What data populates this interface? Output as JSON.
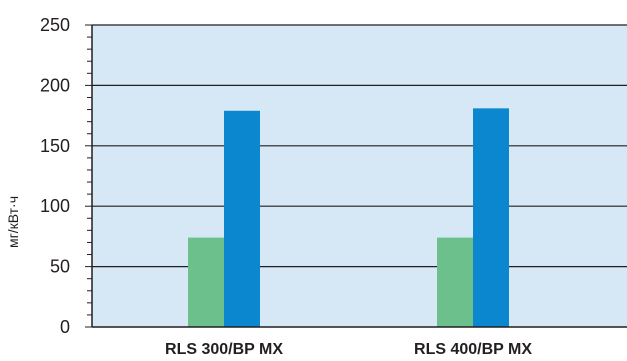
{
  "chart_data": {
    "type": "bar",
    "title": "",
    "xlabel": "",
    "ylabel": "мг/кВт·ч",
    "ylim": [
      0,
      250
    ],
    "yticks": [
      0,
      50,
      100,
      150,
      200,
      250
    ],
    "grid": true,
    "categories": [
      "RLS 300/BP MX",
      "RLS 400/BP MX"
    ],
    "series": [
      {
        "color": "#6cc08b",
        "values": [
          74,
          74
        ]
      },
      {
        "color": "#0a87cf",
        "values": [
          179,
          181
        ]
      }
    ]
  },
  "colors": {
    "plot_background": "#d6e8f5",
    "axis": "#231f20"
  }
}
